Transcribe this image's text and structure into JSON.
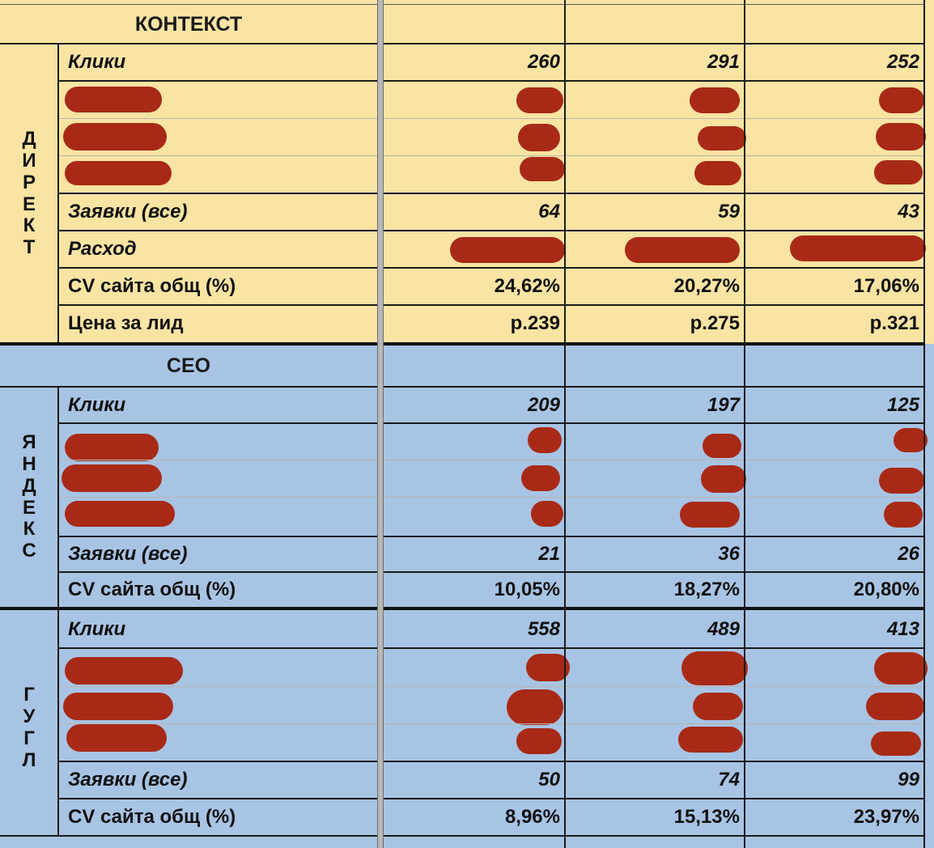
{
  "sections": [
    {
      "header": "КОНТЕКСТ",
      "groups": [
        {
          "name": "ДИРЕКТ",
          "letters": [
            "Д",
            "И",
            "Р",
            "Е",
            "К",
            "Т"
          ],
          "rows": [
            {
              "label": "Клики",
              "values": [
                "260",
                "291",
                "252"
              ]
            },
            {
              "label": "",
              "values": [
                "",
                "",
                ""
              ]
            },
            {
              "label": "",
              "values": [
                "",
                "",
                ""
              ]
            },
            {
              "label": "",
              "values": [
                "",
                "",
                ""
              ]
            },
            {
              "label": "Заявки (все)",
              "values": [
                "64",
                "59",
                "43"
              ]
            },
            {
              "label": "Расход",
              "values": [
                "",
                "",
                ""
              ]
            },
            {
              "label": "CV сайта общ (%)",
              "values": [
                "24,62%",
                "20,27%",
                "17,06%"
              ]
            },
            {
              "label": "Цена за лид",
              "values": [
                "р.239",
                "р.275",
                "р.321"
              ]
            }
          ]
        }
      ]
    },
    {
      "header": "СЕО",
      "groups": [
        {
          "name": "ЯНДЕКС",
          "letters": [
            "Я",
            "Н",
            "Д",
            "Е",
            "К",
            "С"
          ],
          "rows": [
            {
              "label": "Клики",
              "values": [
                "209",
                "197",
                "125"
              ]
            },
            {
              "label": "",
              "values": [
                "",
                "",
                ""
              ]
            },
            {
              "label": "",
              "values": [
                "",
                "",
                ""
              ]
            },
            {
              "label": "",
              "values": [
                "",
                "",
                ""
              ]
            },
            {
              "label": "Заявки (все)",
              "values": [
                "21",
                "36",
                "26"
              ]
            },
            {
              "label": "CV сайта общ (%)",
              "values": [
                "10,05%",
                "18,27%",
                "20,80%"
              ]
            }
          ]
        },
        {
          "name": "ГУГЛ",
          "letters": [
            "Г",
            "У",
            "Г",
            "Л"
          ],
          "rows": [
            {
              "label": "Клики",
              "values": [
                "558",
                "489",
                "413"
              ]
            },
            {
              "label": "",
              "values": [
                "",
                "",
                ""
              ]
            },
            {
              "label": "",
              "values": [
                "",
                "",
                ""
              ]
            },
            {
              "label": "",
              "values": [
                "",
                "",
                ""
              ]
            },
            {
              "label": "Заявки (все)",
              "values": [
                "50",
                "74",
                "99"
              ]
            },
            {
              "label": "CV сайта общ (%)",
              "values": [
                "8,96%",
                "15,13%",
                "23,97%"
              ]
            }
          ]
        }
      ]
    }
  ],
  "colors": {
    "context_fill": "#f9e4a3",
    "seo_fill": "#a8c4e4",
    "redaction": "#a82a16",
    "gridline": "#1a1a1a"
  }
}
